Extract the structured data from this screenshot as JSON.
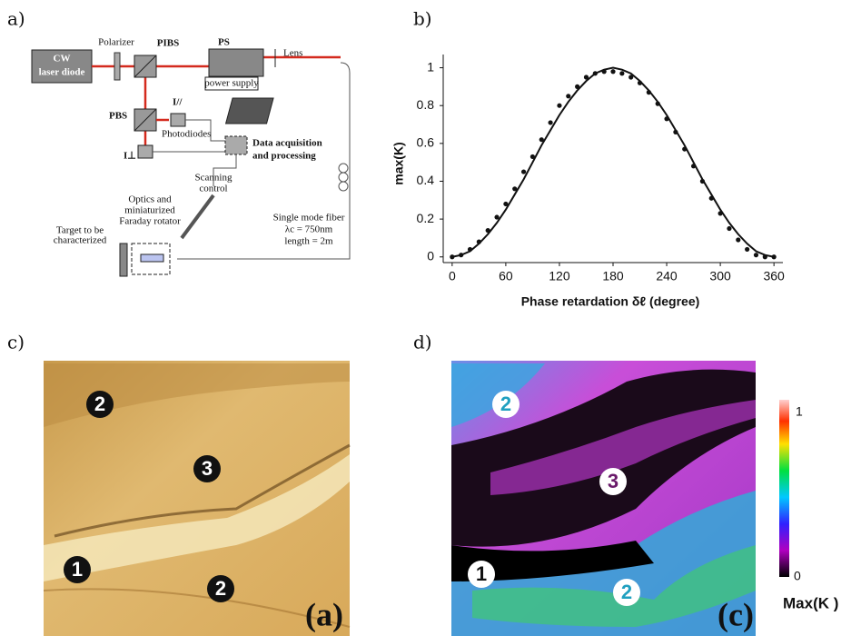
{
  "panel_labels": [
    "a)",
    "b)",
    "c)",
    "d)"
  ],
  "diagram": {
    "laser": [
      "CW",
      "laser diode"
    ],
    "polarizer": "Polarizer",
    "pibs": "PIBS",
    "ps": "PS",
    "power_supply": "power supply",
    "lens": "Lens",
    "pbs": "PBS",
    "i_parallel": "I//",
    "photodiodes": "Photodiodes",
    "i_perp": "I⊥",
    "daq": [
      "Data acquisition",
      "and processing"
    ],
    "scanning": [
      "Scanning",
      "control"
    ],
    "optics": [
      "Optics and",
      "miniaturized",
      "Faraday rotator"
    ],
    "target": [
      "Target to be",
      "characterized"
    ],
    "fiber": [
      "Single mode fiber",
      "λc = 750nm",
      "length = 2m"
    ]
  },
  "chart_data": {
    "type": "line",
    "ylabel": "max(K)",
    "xlabel": "Phase retardation δℓ (degree)",
    "x": [
      0,
      10,
      20,
      30,
      40,
      50,
      60,
      70,
      80,
      90,
      100,
      110,
      120,
      130,
      140,
      150,
      160,
      170,
      180,
      190,
      200,
      210,
      220,
      230,
      240,
      250,
      260,
      270,
      280,
      290,
      300,
      310,
      320,
      330,
      340,
      350,
      360
    ],
    "series": [
      {
        "type": "line",
        "color": "#111111",
        "values": [
          0,
          0.01,
          0.03,
          0.07,
          0.12,
          0.18,
          0.25,
          0.33,
          0.41,
          0.5,
          0.59,
          0.67,
          0.75,
          0.82,
          0.88,
          0.93,
          0.97,
          0.99,
          1,
          0.99,
          0.97,
          0.93,
          0.88,
          0.82,
          0.75,
          0.67,
          0.59,
          0.5,
          0.41,
          0.33,
          0.25,
          0.18,
          0.12,
          0.07,
          0.03,
          0.01,
          0
        ]
      },
      {
        "type": "scatter",
        "color": "#111111",
        "values": [
          0,
          0.01,
          0.04,
          0.08,
          0.14,
          0.21,
          0.28,
          0.36,
          0.45,
          0.53,
          0.62,
          0.71,
          0.8,
          0.85,
          0.9,
          0.95,
          0.97,
          0.98,
          0.98,
          0.97,
          0.95,
          0.92,
          0.87,
          0.81,
          0.73,
          0.66,
          0.57,
          0.48,
          0.4,
          0.31,
          0.23,
          0.15,
          0.09,
          0.04,
          0.01,
          0,
          0
        ]
      }
    ],
    "xlim": [
      -10,
      370
    ],
    "ylim": [
      -0.03,
      1.07
    ],
    "xticks": [
      0,
      60,
      120,
      180,
      240,
      300,
      360
    ],
    "yticks": [
      0,
      0.2,
      0.4,
      0.6,
      0.8,
      1
    ]
  },
  "image_c": {
    "markers": [
      "2",
      "3",
      "1",
      "2"
    ],
    "tag": "(a)"
  },
  "image_d": {
    "markers": [
      "2",
      "3",
      "1",
      "2"
    ],
    "tag": "(c)"
  },
  "colorbar": {
    "max": 1,
    "min": 0,
    "label": "Max(K )"
  }
}
